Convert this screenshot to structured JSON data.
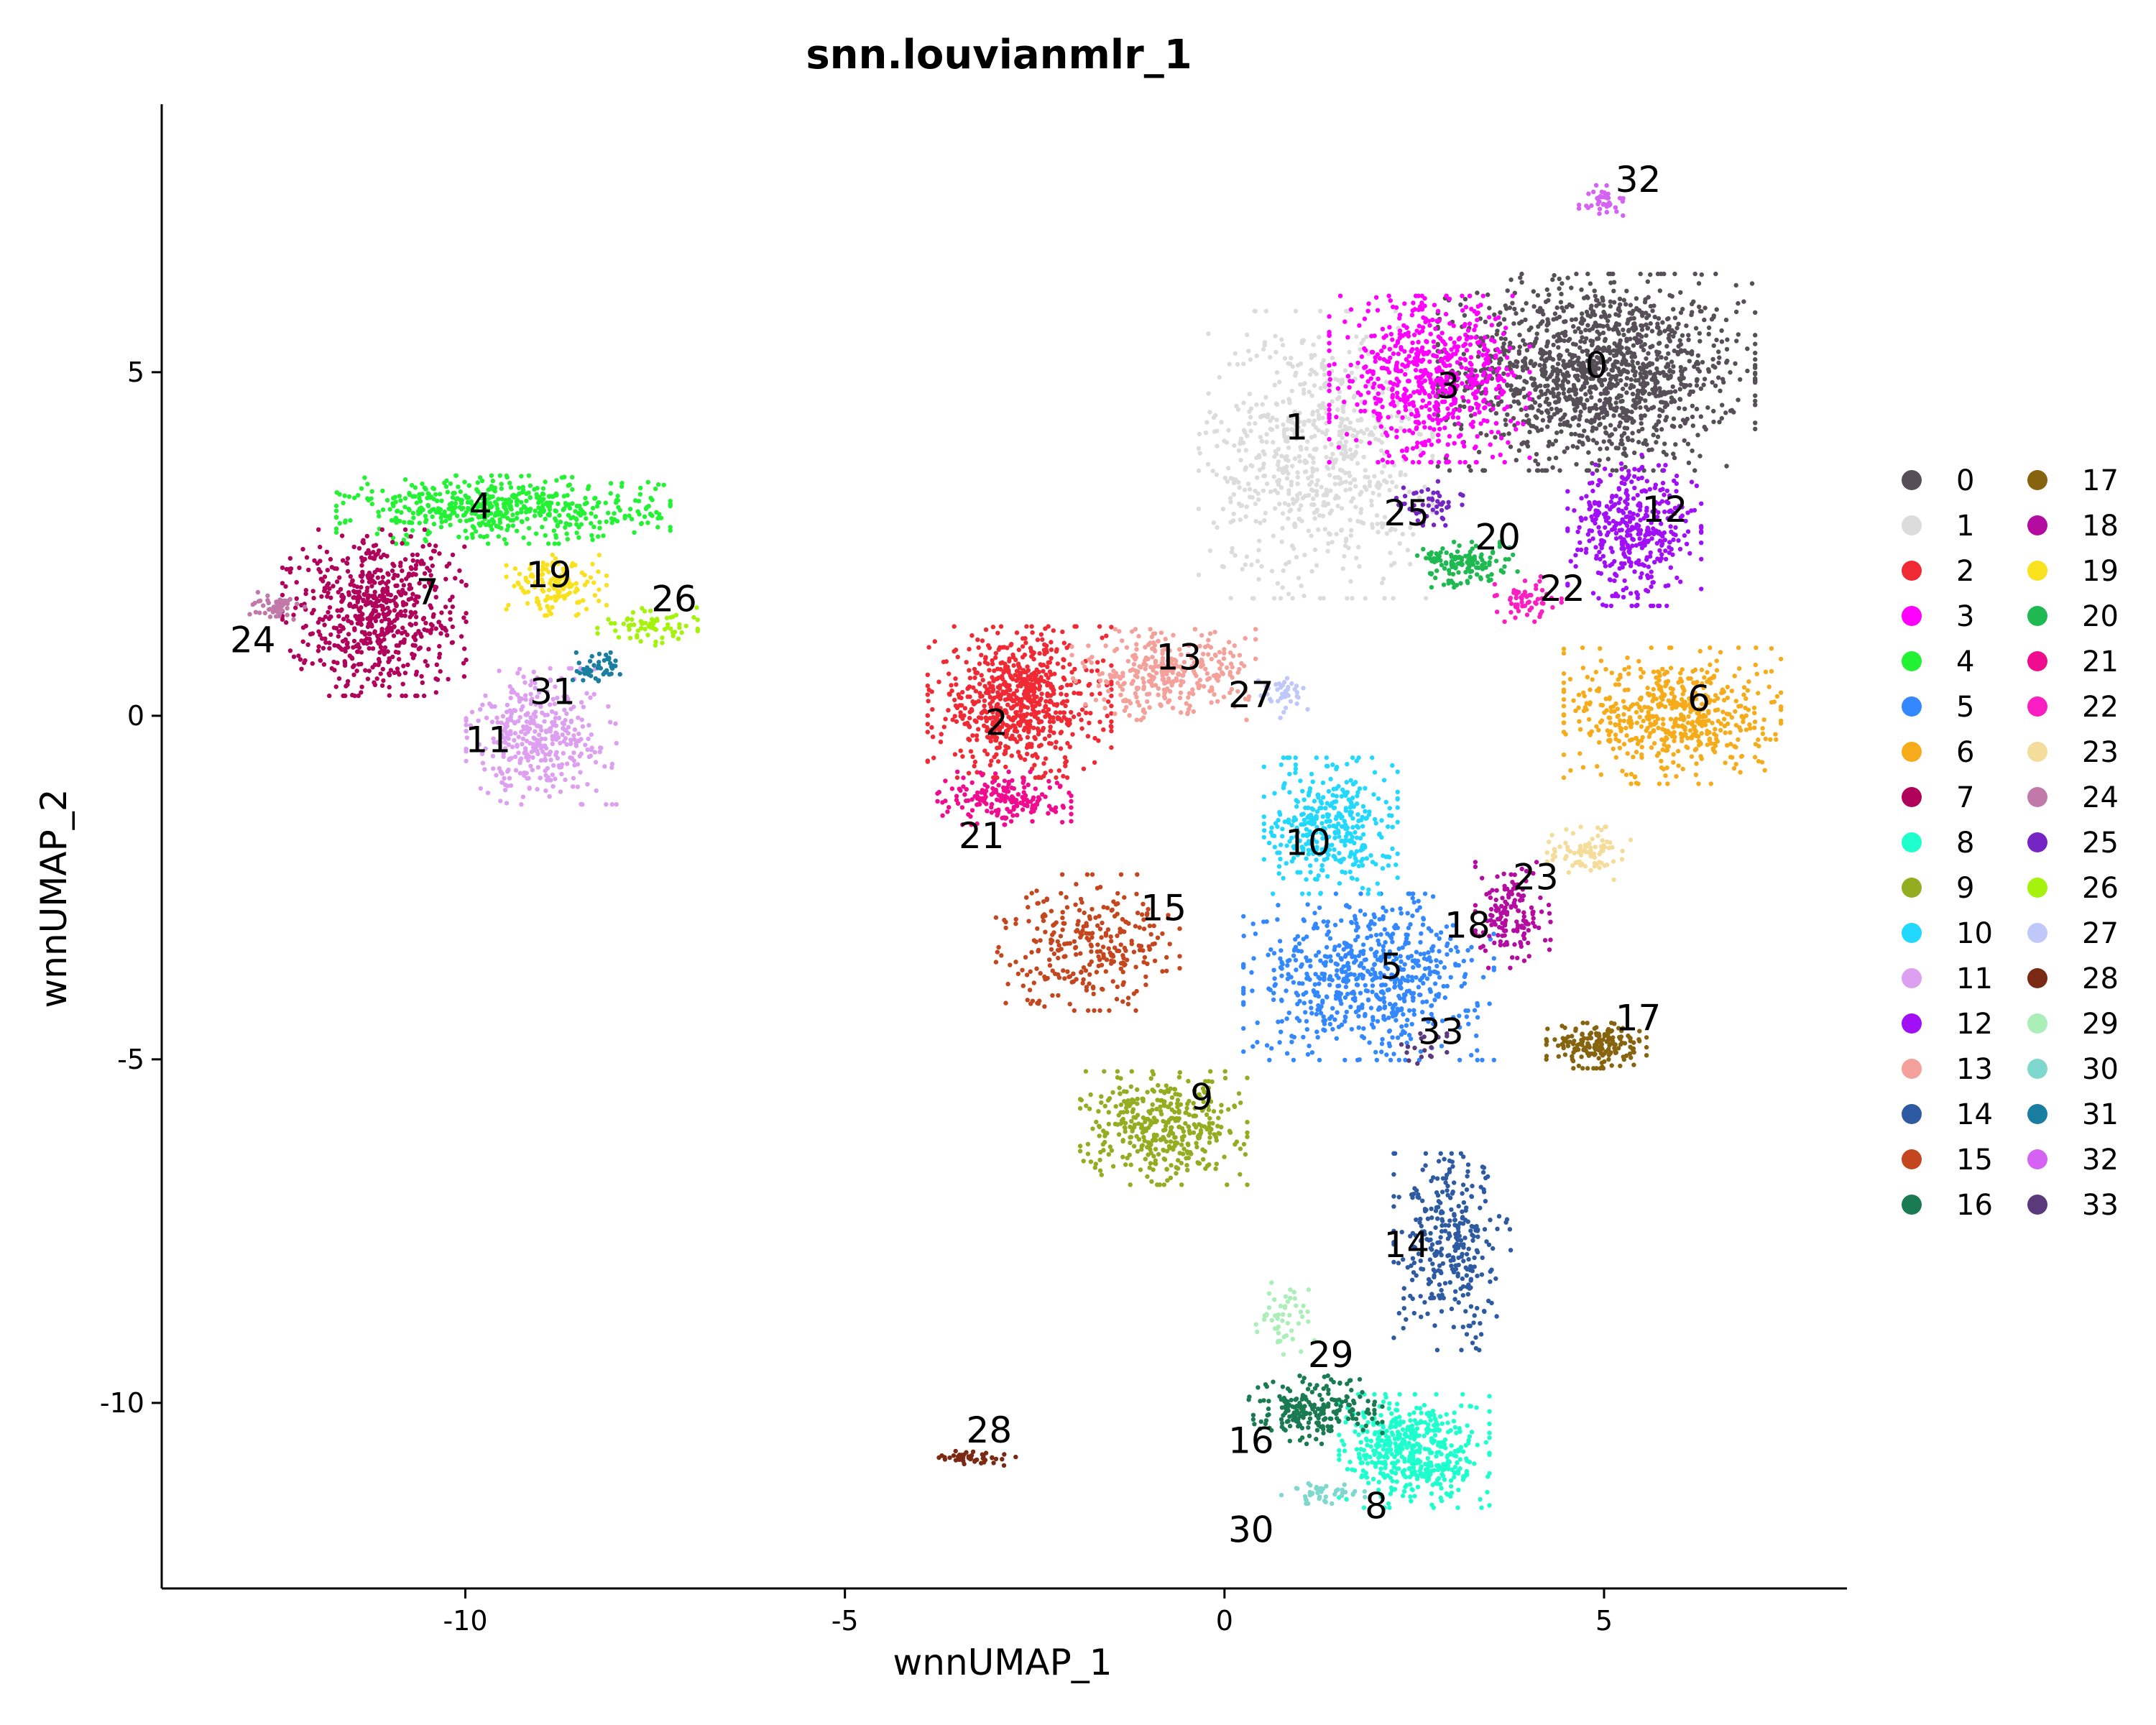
{
  "chart_data": {
    "type": "scatter",
    "title": "snn.louvianmlr_1",
    "xlabel": "wnnUMAP_1",
    "ylabel": "wnnUMAP_2",
    "xlim": [
      -14,
      8.2
    ],
    "ylim": [
      -12.7,
      8.9
    ],
    "x_ticks": [
      -10,
      -5,
      0,
      5
    ],
    "y_ticks": [
      -10,
      -5,
      0,
      5
    ],
    "x_tick_labels": [
      "-10",
      "-5",
      "0",
      "5"
    ],
    "y_tick_labels": [
      "-10",
      "-5",
      "0",
      "5"
    ],
    "legend_position": "right",
    "legend_columns": 2,
    "grid": false,
    "clusters": [
      {
        "name": "0",
        "color": "#564f57",
        "center": [
          4.9,
          5.0
        ],
        "spread": [
          1.9,
          1.3
        ],
        "n": 1400,
        "label_pos": [
          4.9,
          5.1
        ]
      },
      {
        "name": "1",
        "color": "#dcdcdc",
        "center": [
          1.2,
          3.8
        ],
        "spread": [
          1.4,
          1.9
        ],
        "n": 700,
        "label_pos": [
          0.95,
          4.2
        ]
      },
      {
        "name": "2",
        "color": "#f02a35",
        "center": [
          -2.7,
          0.2
        ],
        "spread": [
          1.1,
          1.0
        ],
        "n": 700,
        "label_pos": [
          -3.0,
          -0.1
        ]
      },
      {
        "name": "3",
        "color": "#ff00ff",
        "center": [
          2.7,
          4.9
        ],
        "spread": [
          1.2,
          1.1
        ],
        "n": 650,
        "label_pos": [
          2.95,
          4.8
        ]
      },
      {
        "name": "4",
        "color": "#22f233",
        "center": [
          -9.5,
          3.0
        ],
        "spread": [
          2.0,
          0.45
        ],
        "n": 550,
        "label_pos": [
          -9.8,
          3.05
        ]
      },
      {
        "name": "5",
        "color": "#3388ff",
        "center": [
          1.9,
          -3.8
        ],
        "spread": [
          1.5,
          1.1
        ],
        "n": 650,
        "label_pos": [
          2.2,
          -3.65
        ]
      },
      {
        "name": "6",
        "color": "#f6ac1a",
        "center": [
          5.9,
          0.0
        ],
        "spread": [
          1.3,
          0.9
        ],
        "n": 550,
        "label_pos": [
          6.25,
          0.25
        ]
      },
      {
        "name": "7",
        "color": "#b0025a",
        "center": [
          -11.2,
          1.5
        ],
        "spread": [
          1.1,
          1.1
        ],
        "n": 650,
        "label_pos": [
          -10.5,
          1.8
        ]
      },
      {
        "name": "8",
        "color": "#1effce",
        "center": [
          2.5,
          -10.7
        ],
        "spread": [
          0.9,
          0.75
        ],
        "n": 500,
        "label_pos": [
          2.0,
          -11.5
        ]
      },
      {
        "name": "9",
        "color": "#93ad21",
        "center": [
          -0.8,
          -6.0
        ],
        "spread": [
          1.0,
          0.75
        ],
        "n": 400,
        "label_pos": [
          -0.3,
          -5.55
        ]
      },
      {
        "name": "10",
        "color": "#22d8ff",
        "center": [
          1.4,
          -1.6
        ],
        "spread": [
          0.8,
          0.9
        ],
        "n": 380,
        "label_pos": [
          1.1,
          -1.85
        ]
      },
      {
        "name": "11",
        "color": "#dda0f0",
        "center": [
          -9.0,
          -0.3
        ],
        "spread": [
          0.9,
          0.9
        ],
        "n": 380,
        "label_pos": [
          -9.7,
          -0.35
        ]
      },
      {
        "name": "12",
        "color": "#a10ff6",
        "center": [
          5.4,
          2.7
        ],
        "spread": [
          0.8,
          1.0
        ],
        "n": 400,
        "label_pos": [
          5.8,
          3.0
        ]
      },
      {
        "name": "13",
        "color": "#f4a09b",
        "center": [
          -0.8,
          0.6
        ],
        "spread": [
          1.1,
          0.6
        ],
        "n": 320,
        "label_pos": [
          -0.6,
          0.85
        ]
      },
      {
        "name": "14",
        "color": "#2e5aa2",
        "center": [
          3.0,
          -7.8
        ],
        "spread": [
          0.7,
          1.3
        ],
        "n": 320,
        "label_pos": [
          2.4,
          -7.7
        ]
      },
      {
        "name": "15",
        "color": "#c4461e",
        "center": [
          -1.8,
          -3.3
        ],
        "spread": [
          1.1,
          0.9
        ],
        "n": 300,
        "label_pos": [
          -0.8,
          -2.8
        ]
      },
      {
        "name": "16",
        "color": "#1a7a52",
        "center": [
          1.2,
          -10.1
        ],
        "spread": [
          0.8,
          0.45
        ],
        "n": 220,
        "label_pos": [
          0.35,
          -10.55
        ]
      },
      {
        "name": "17",
        "color": "#86640f",
        "center": [
          4.9,
          -4.8
        ],
        "spread": [
          0.6,
          0.3
        ],
        "n": 180,
        "label_pos": [
          5.45,
          -4.4
        ]
      },
      {
        "name": "18",
        "color": "#b40ca0",
        "center": [
          3.8,
          -2.9
        ],
        "spread": [
          0.45,
          0.7
        ],
        "n": 150,
        "label_pos": [
          3.2,
          -3.05
        ]
      },
      {
        "name": "19",
        "color": "#fae11e",
        "center": [
          -8.8,
          1.9
        ],
        "spread": [
          0.6,
          0.4
        ],
        "n": 140,
        "label_pos": [
          -8.9,
          2.05
        ]
      },
      {
        "name": "20",
        "color": "#1eb950",
        "center": [
          3.2,
          2.2
        ],
        "spread": [
          0.6,
          0.3
        ],
        "n": 130,
        "label_pos": [
          3.6,
          2.6
        ]
      },
      {
        "name": "21",
        "color": "#f00c8e",
        "center": [
          -2.9,
          -1.2
        ],
        "spread": [
          0.8,
          0.35
        ],
        "n": 180,
        "label_pos": [
          -3.2,
          -1.75
        ]
      },
      {
        "name": "22",
        "color": "#fa1ec3",
        "center": [
          4.0,
          1.7
        ],
        "spread": [
          0.4,
          0.3
        ],
        "n": 60,
        "label_pos": [
          4.45,
          1.85
        ]
      },
      {
        "name": "23",
        "color": "#f4dc9b",
        "center": [
          4.8,
          -2.0
        ],
        "spread": [
          0.5,
          0.35
        ],
        "n": 80,
        "label_pos": [
          4.1,
          -2.35
        ]
      },
      {
        "name": "24",
        "color": "#c079a8",
        "center": [
          -12.5,
          1.6
        ],
        "spread": [
          0.35,
          0.18
        ],
        "n": 50,
        "label_pos": [
          -12.8,
          1.1
        ]
      },
      {
        "name": "25",
        "color": "#7525c4",
        "center": [
          2.7,
          3.1
        ],
        "spread": [
          0.4,
          0.3
        ],
        "n": 50,
        "label_pos": [
          2.4,
          2.95
        ]
      },
      {
        "name": "26",
        "color": "#a5f20c",
        "center": [
          -7.6,
          1.3
        ],
        "spread": [
          0.6,
          0.25
        ],
        "n": 70,
        "label_pos": [
          -7.25,
          1.7
        ]
      },
      {
        "name": "27",
        "color": "#c0c8fa",
        "center": [
          0.8,
          0.3
        ],
        "spread": [
          0.4,
          0.3
        ],
        "n": 40,
        "label_pos": [
          0.35,
          0.3
        ]
      },
      {
        "name": "28",
        "color": "#7a2a14",
        "center": [
          -3.3,
          -10.8
        ],
        "spread": [
          0.5,
          0.1
        ],
        "n": 45,
        "label_pos": [
          -3.1,
          -10.4
        ]
      },
      {
        "name": "29",
        "color": "#aaeeb8",
        "center": [
          0.8,
          -8.8
        ],
        "spread": [
          0.35,
          0.5
        ],
        "n": 50,
        "label_pos": [
          1.4,
          -9.3
        ]
      },
      {
        "name": "30",
        "color": "#7ed8cd",
        "center": [
          1.3,
          -11.3
        ],
        "spread": [
          0.5,
          0.15
        ],
        "n": 45,
        "label_pos": [
          0.35,
          -11.85
        ]
      },
      {
        "name": "31",
        "color": "#1a7ea0",
        "center": [
          -8.2,
          0.7
        ],
        "spread": [
          0.35,
          0.2
        ],
        "n": 45,
        "label_pos": [
          -8.85,
          0.35
        ]
      },
      {
        "name": "32",
        "color": "#d562f2",
        "center": [
          5.0,
          7.5
        ],
        "spread": [
          0.3,
          0.2
        ],
        "n": 40,
        "label_pos": [
          5.45,
          7.8
        ]
      },
      {
        "name": "33",
        "color": "#5a3a7a",
        "center": [
          2.6,
          -4.9
        ],
        "spread": [
          0.3,
          0.25
        ],
        "n": 20,
        "label_pos": [
          2.85,
          -4.6
        ]
      }
    ]
  }
}
